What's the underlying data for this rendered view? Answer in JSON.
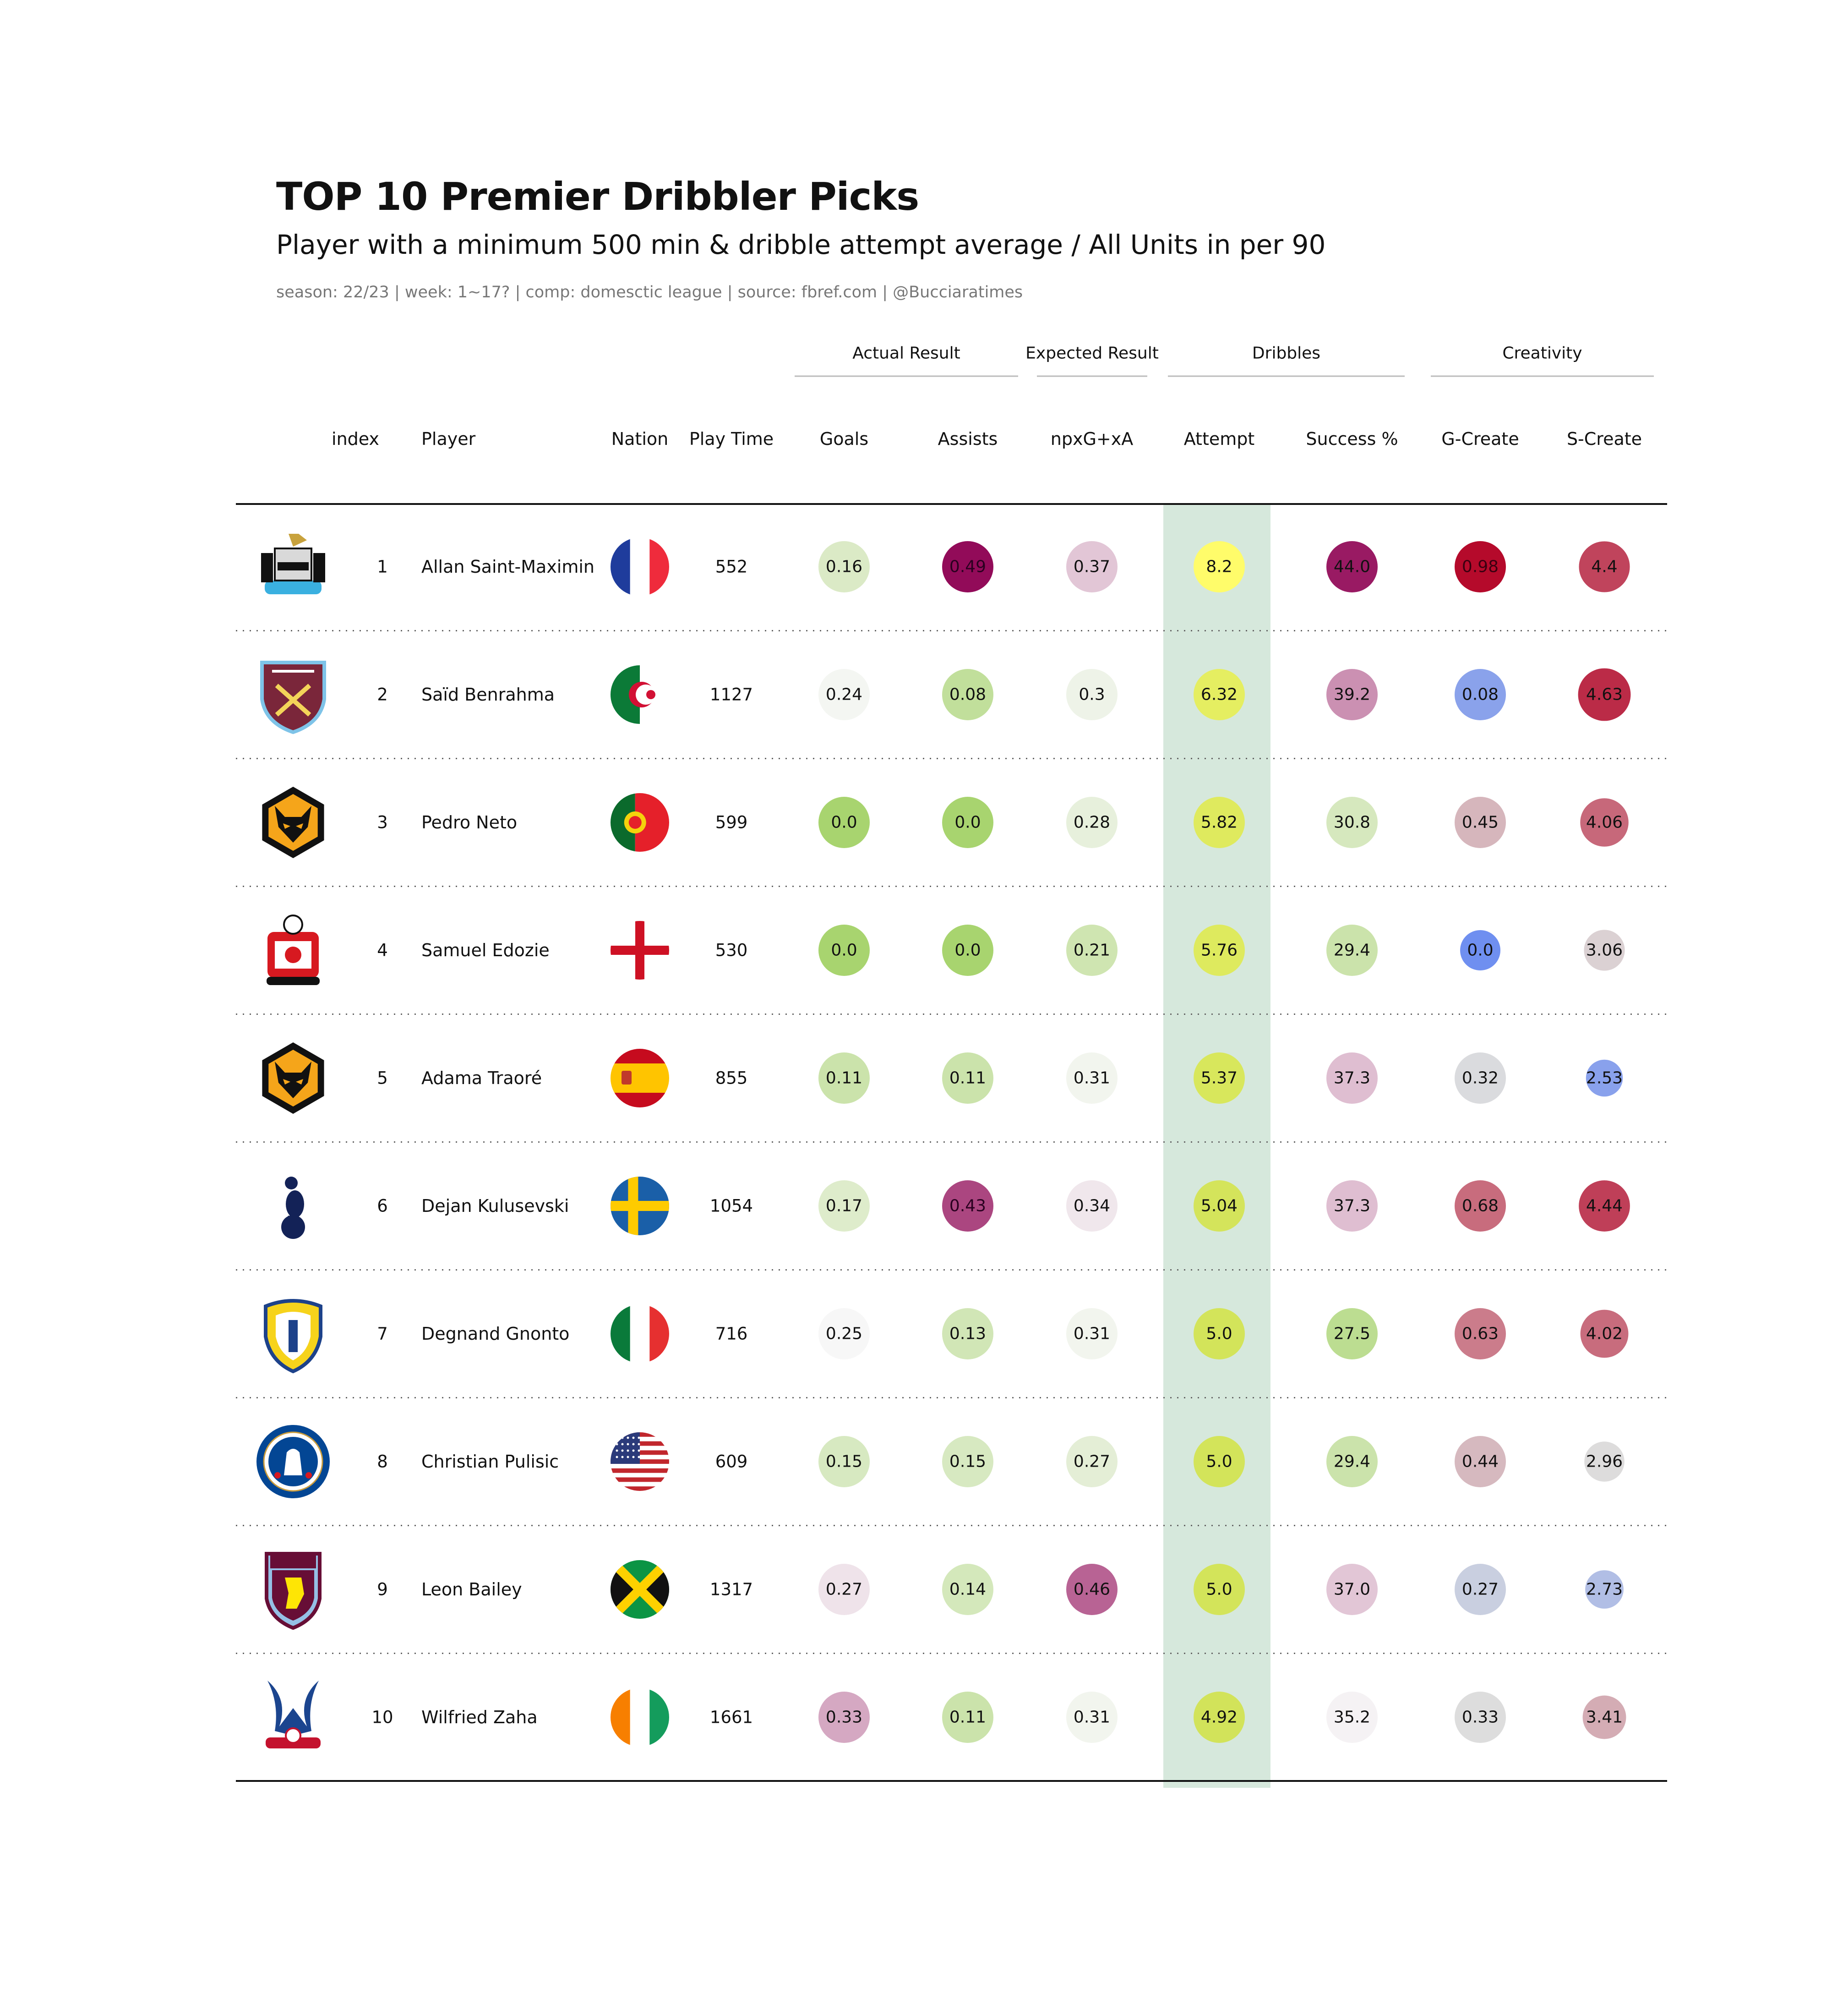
{
  "title": "TOP 10 Premier Dribbler Picks",
  "subtitle": "Player with a minimum 500 min & dribble attempt average / All Units in per 90",
  "caption": "season: 22/23 | week: 1~17? | comp: domesctic league | source: fbref.com | @Bucciaratimes",
  "chart_data": {
    "type": "table",
    "column_groups": [
      {
        "label": "Actual Result",
        "columns": [
          "Goals",
          "Assists"
        ]
      },
      {
        "label": "Expected Result",
        "columns": [
          "npxG+xA"
        ]
      },
      {
        "label": "Dribbles",
        "columns": [
          "Attempt",
          "Success %"
        ]
      },
      {
        "label": "Creativity",
        "columns": [
          "G-Create",
          "S-Create"
        ]
      }
    ],
    "columns": [
      "index",
      "Player",
      "Nation",
      "Play Time",
      "Goals",
      "Assists",
      "npxG+xA",
      "Attempt",
      "Success %",
      "G-Create",
      "S-Create"
    ],
    "rows": [
      {
        "crest": "newcastle-crest",
        "index": "1",
        "player": "Allan Saint-Maximin",
        "nation": "france",
        "play_time": "552",
        "goals": "0.16",
        "assists": "0.49",
        "npxg_xa": "0.37",
        "attempt": "8.2",
        "success": "44.0",
        "g_create": "0.98",
        "s_create": "4.4"
      },
      {
        "crest": "west-ham-crest",
        "index": "2",
        "player": "Saïd Benrahma",
        "nation": "algeria",
        "play_time": "1127",
        "goals": "0.24",
        "assists": "0.08",
        "npxg_xa": "0.3",
        "attempt": "6.32",
        "success": "39.2",
        "g_create": "0.08",
        "s_create": "4.63"
      },
      {
        "crest": "wolves-crest",
        "index": "3",
        "player": "Pedro Neto",
        "nation": "portugal",
        "play_time": "599",
        "goals": "0.0",
        "assists": "0.0",
        "npxg_xa": "0.28",
        "attempt": "5.82",
        "success": "30.8",
        "g_create": "0.45",
        "s_create": "4.06"
      },
      {
        "crest": "southampton-crest",
        "index": "4",
        "player": "Samuel Edozie",
        "nation": "england",
        "play_time": "530",
        "goals": "0.0",
        "assists": "0.0",
        "npxg_xa": "0.21",
        "attempt": "5.76",
        "success": "29.4",
        "g_create": "0.0",
        "s_create": "3.06"
      },
      {
        "crest": "wolves-crest",
        "index": "5",
        "player": "Adama Traoré",
        "nation": "spain",
        "play_time": "855",
        "goals": "0.11",
        "assists": "0.11",
        "npxg_xa": "0.31",
        "attempt": "5.37",
        "success": "37.3",
        "g_create": "0.32",
        "s_create": "2.53"
      },
      {
        "crest": "tottenham-crest",
        "index": "6",
        "player": "Dejan Kulusevski",
        "nation": "sweden",
        "play_time": "1054",
        "goals": "0.17",
        "assists": "0.43",
        "npxg_xa": "0.34",
        "attempt": "5.04",
        "success": "37.3",
        "g_create": "0.68",
        "s_create": "4.44"
      },
      {
        "crest": "leeds-crest",
        "index": "7",
        "player": "Degnand Gnonto",
        "nation": "italy",
        "play_time": "716",
        "goals": "0.25",
        "assists": "0.13",
        "npxg_xa": "0.31",
        "attempt": "5.0",
        "success": "27.5",
        "g_create": "0.63",
        "s_create": "4.02"
      },
      {
        "crest": "chelsea-crest",
        "index": "8",
        "player": "Christian Pulisic",
        "nation": "usa",
        "play_time": "609",
        "goals": "0.15",
        "assists": "0.15",
        "npxg_xa": "0.27",
        "attempt": "5.0",
        "success": "29.4",
        "g_create": "0.44",
        "s_create": "2.96"
      },
      {
        "crest": "aston-villa-crest",
        "index": "9",
        "player": "Leon Bailey",
        "nation": "jamaica",
        "play_time": "1317",
        "goals": "0.27",
        "assists": "0.14",
        "npxg_xa": "0.46",
        "attempt": "5.0",
        "success": "37.0",
        "g_create": "0.27",
        "s_create": "2.73"
      },
      {
        "crest": "crystal-palace-crest",
        "index": "10",
        "player": "Wilfried Zaha",
        "nation": "ivory-coast",
        "play_time": "1661",
        "goals": "0.33",
        "assists": "0.11",
        "npxg_xa": "0.31",
        "attempt": "4.92",
        "success": "35.2",
        "g_create": "0.33",
        "s_create": "3.41"
      }
    ],
    "highlight_column": "Attempt",
    "colors": {
      "highlight_band": "#d6e8dc",
      "result_cmap": [
        "#a8d46f",
        "#f7f7f7",
        "#8e0152"
      ],
      "dribble_cmap": "#ffff66 → #c8dc5a",
      "creativity_cmap": [
        "#6f8ff0",
        "#dddddd",
        "#b40426"
      ]
    }
  }
}
